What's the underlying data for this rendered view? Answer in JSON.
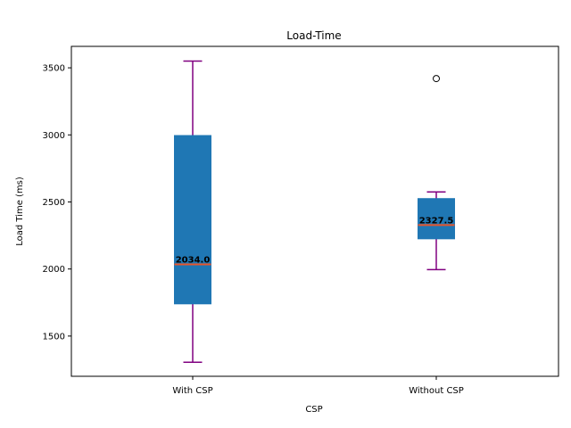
{
  "chart_data": {
    "type": "box",
    "title": "Load-Time",
    "xlabel": "CSP",
    "ylabel": "Load Time (ms)",
    "categories": [
      "With CSP",
      "Without CSP"
    ],
    "ylim": [
      1200,
      3660
    ],
    "yticks": [
      1500,
      2000,
      2500,
      3000,
      3500
    ],
    "grid": false,
    "boxes": [
      {
        "name": "With CSP",
        "whisker_low": 1305,
        "q1": 1740,
        "median": 2034.0,
        "q3": 2995,
        "whisker_high": 3550,
        "outliers": [],
        "median_label": "2034.0"
      },
      {
        "name": "Without CSP",
        "whisker_low": 1995,
        "q1": 2225,
        "median": 2327.5,
        "q3": 2525,
        "whisker_high": 2575,
        "outliers": [
          3420
        ],
        "median_label": "2327.5"
      }
    ],
    "colors": {
      "box_fill": "#1f77b4",
      "median": "#e8542a",
      "whisker": "#800080",
      "outlier": "#000000"
    }
  }
}
